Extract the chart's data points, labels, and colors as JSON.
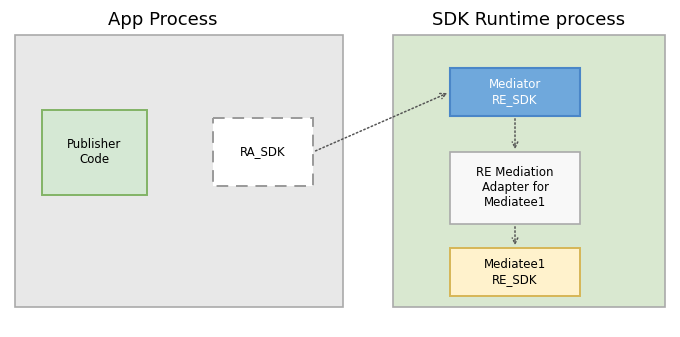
{
  "title_left": "App Process",
  "title_right": "SDK Runtime process",
  "bg_left": "#e8e8e8",
  "bg_right": "#d9e8d0",
  "box_publisher_label": "Publisher\nCode",
  "box_publisher_bg": "#d5e8d4",
  "box_publisher_border": "#82b366",
  "box_ra_sdk_label": "RA_SDK",
  "box_ra_sdk_bg": "white",
  "box_mediator_label": "Mediator\nRE_SDK",
  "box_mediator_bg": "#6fa8dc",
  "box_mediator_border": "#4a86c8",
  "box_re_mediation_label": "RE Mediation\nAdapter for\nMediatee1",
  "box_re_mediation_bg": "#f8f8f8",
  "box_re_mediation_border": "#aaaaaa",
  "box_mediatee_label": "Mediatee1\nRE_SDK",
  "box_mediatee_bg": "#fff2cc",
  "box_mediatee_border": "#d6b656",
  "font_size_title": 13,
  "font_size_box": 8.5,
  "arrow_color": "#555555",
  "container_border": "#aaaaaa",
  "fig_w": 6.8,
  "fig_h": 3.37,
  "dpi": 100
}
